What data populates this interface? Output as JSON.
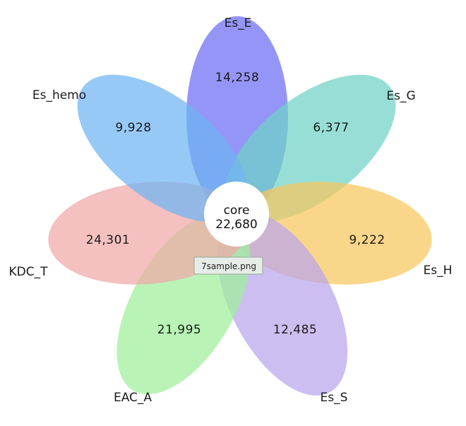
{
  "diagram": {
    "type": "flower",
    "core": {
      "label": "core",
      "value": "22,680",
      "color": "#ffffff"
    },
    "petals": [
      {
        "name": "Es_E",
        "value": "14,258",
        "color": "#6b6cf2"
      },
      {
        "name": "Es_G",
        "value": "6,377",
        "color": "#6fd2c6"
      },
      {
        "name": "Es_H",
        "value": "9,222",
        "color": "#f8c65e"
      },
      {
        "name": "Es_S",
        "value": "12,485",
        "color": "#b9a5ec"
      },
      {
        "name": "EAC_A",
        "value": "21,995",
        "color": "#9ef09a"
      },
      {
        "name": "KDC_T",
        "value": "24,301",
        "color": "#f0a7a7"
      },
      {
        "name": "Es_hemo",
        "value": "9,928",
        "color": "#6fb4f2"
      }
    ]
  },
  "tooltip": {
    "text": "7sample.png"
  }
}
